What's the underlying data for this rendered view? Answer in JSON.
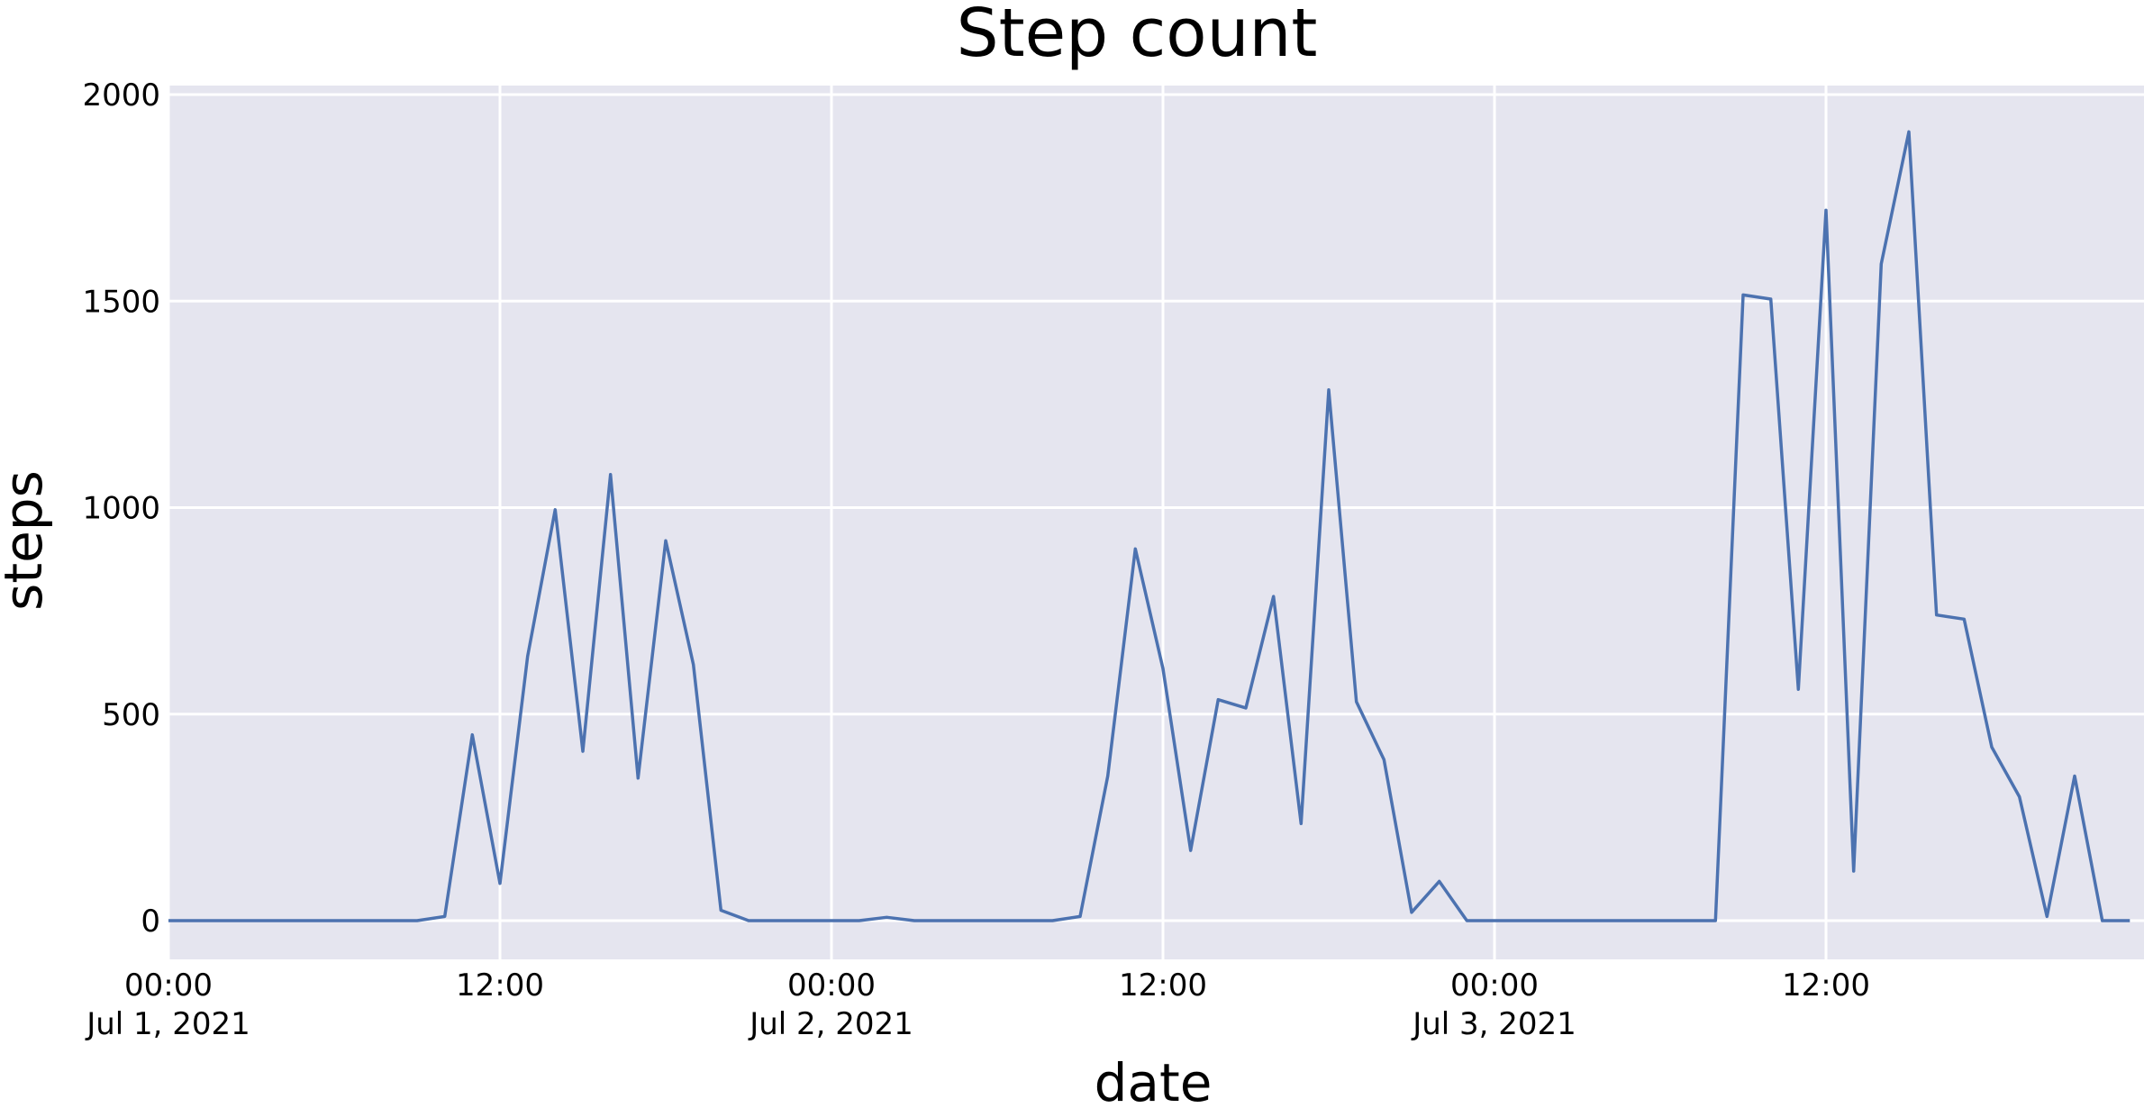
{
  "chart_data": {
    "type": "line",
    "title": "Step count",
    "xlabel": "date",
    "ylabel": "steps",
    "ylim": [
      -100,
      2020
    ],
    "xlim": [
      "2021-07-01 00:00",
      "2021-07-03 23:59"
    ],
    "grid": true,
    "colors": {
      "plot_bg": "#E5E5EF",
      "grid": "#FFFFFF",
      "line": "#4C72B0"
    },
    "y_ticks": [
      {
        "value": 0,
        "label": "0"
      },
      {
        "value": 500,
        "label": "500"
      },
      {
        "value": 1000,
        "label": "1000"
      },
      {
        "value": 1500,
        "label": "1500"
      },
      {
        "value": 2000,
        "label": "2000"
      }
    ],
    "x_ticks": [
      {
        "value": "2021-07-01 00:00",
        "label": "00:00",
        "sublabel": "Jul 1, 2021"
      },
      {
        "value": "2021-07-01 12:00",
        "label": "12:00",
        "sublabel": ""
      },
      {
        "value": "2021-07-02 00:00",
        "label": "00:00",
        "sublabel": "Jul 2, 2021"
      },
      {
        "value": "2021-07-02 12:00",
        "label": "12:00",
        "sublabel": ""
      },
      {
        "value": "2021-07-03 00:00",
        "label": "00:00",
        "sublabel": "Jul 3, 2021"
      },
      {
        "value": "2021-07-03 12:00",
        "label": "12:00",
        "sublabel": ""
      }
    ],
    "series": [
      {
        "x": [
          "2021-07-01 00:00",
          "2021-07-01 01:00",
          "2021-07-01 02:00",
          "2021-07-01 03:00",
          "2021-07-01 04:00",
          "2021-07-01 05:00",
          "2021-07-01 06:00",
          "2021-07-01 07:00",
          "2021-07-01 08:00",
          "2021-07-01 09:00",
          "2021-07-01 10:00",
          "2021-07-01 11:00",
          "2021-07-01 12:00",
          "2021-07-01 13:00",
          "2021-07-01 14:00",
          "2021-07-01 15:00",
          "2021-07-01 16:00",
          "2021-07-01 17:00",
          "2021-07-01 18:00",
          "2021-07-01 19:00",
          "2021-07-01 20:00",
          "2021-07-01 21:00",
          "2021-07-01 22:00",
          "2021-07-01 23:00",
          "2021-07-02 00:00",
          "2021-07-02 01:00",
          "2021-07-02 02:00",
          "2021-07-02 03:00",
          "2021-07-02 04:00",
          "2021-07-02 05:00",
          "2021-07-02 06:00",
          "2021-07-02 07:00",
          "2021-07-02 08:00",
          "2021-07-02 09:00",
          "2021-07-02 10:00",
          "2021-07-02 11:00",
          "2021-07-02 12:00",
          "2021-07-02 13:00",
          "2021-07-02 14:00",
          "2021-07-02 15:00",
          "2021-07-02 16:00",
          "2021-07-02 17:00",
          "2021-07-02 18:00",
          "2021-07-02 19:00",
          "2021-07-02 20:00",
          "2021-07-02 21:00",
          "2021-07-02 22:00",
          "2021-07-02 23:00",
          "2021-07-03 00:00",
          "2021-07-03 01:00",
          "2021-07-03 02:00",
          "2021-07-03 03:00",
          "2021-07-03 04:00",
          "2021-07-03 05:00",
          "2021-07-03 06:00",
          "2021-07-03 07:00",
          "2021-07-03 08:00",
          "2021-07-03 09:00",
          "2021-07-03 10:00",
          "2021-07-03 11:00",
          "2021-07-03 12:00",
          "2021-07-03 13:00",
          "2021-07-03 14:00",
          "2021-07-03 15:00",
          "2021-07-03 16:00",
          "2021-07-03 17:00",
          "2021-07-03 18:00",
          "2021-07-03 19:00",
          "2021-07-03 20:00",
          "2021-07-03 21:00",
          "2021-07-03 22:00",
          "2021-07-03 23:00"
        ],
        "y": [
          0,
          0,
          0,
          0,
          0,
          0,
          0,
          0,
          0,
          0,
          10,
          450,
          90,
          640,
          995,
          410,
          1080,
          345,
          920,
          620,
          25,
          0,
          0,
          0,
          0,
          0,
          8,
          0,
          0,
          0,
          0,
          0,
          0,
          10,
          350,
          900,
          610,
          170,
          535,
          515,
          785,
          235,
          1285,
          530,
          390,
          20,
          95,
          0,
          0,
          0,
          0,
          0,
          0,
          0,
          0,
          0,
          0,
          1515,
          1505,
          560,
          1720,
          120,
          1590,
          1910,
          740,
          730,
          420,
          300,
          10,
          350,
          0,
          0
        ]
      }
    ]
  }
}
